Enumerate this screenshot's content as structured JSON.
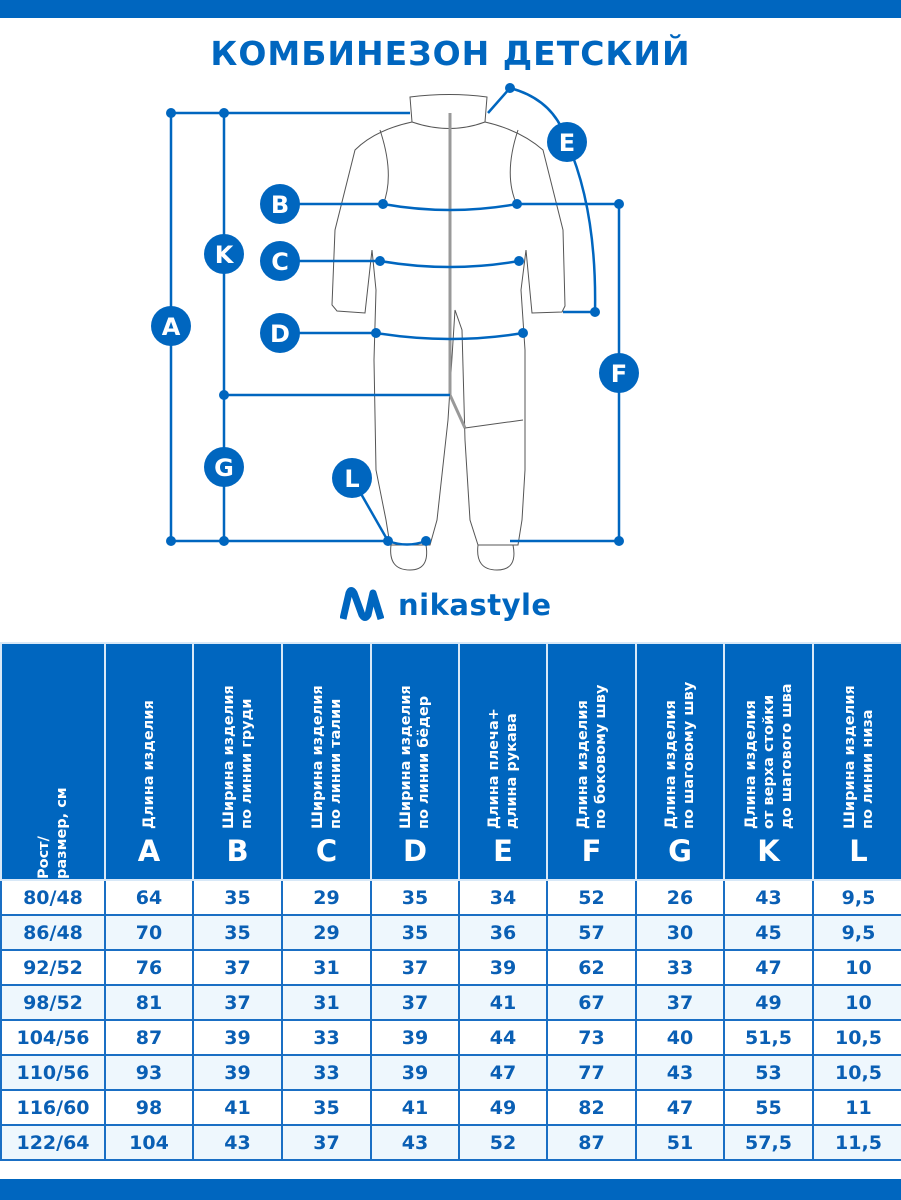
{
  "title": "КОМБИНЕЗОН ДЕТСКИЙ",
  "brand": {
    "name": "nikastyle",
    "color": "#0066bf"
  },
  "diagram": {
    "markers": [
      "A",
      "K",
      "G",
      "B",
      "C",
      "D",
      "E",
      "F",
      "L"
    ]
  },
  "table": {
    "columns": [
      {
        "label": "Рост/\nразмер, см",
        "letter": ""
      },
      {
        "label": "Длина изделия",
        "letter": "A"
      },
      {
        "label": "Ширина изделия\nпо линии груди",
        "letter": "B"
      },
      {
        "label": "Ширина изделия\nпо линии талии",
        "letter": "C"
      },
      {
        "label": "Ширина изделия\nпо линии бёдер",
        "letter": "D"
      },
      {
        "label": "Длина плеча+\nдлина рукава",
        "letter": "E"
      },
      {
        "label": "Длина изделия\nпо боковому шву",
        "letter": "F"
      },
      {
        "label": "Длина изделия\nпо шаговому шву",
        "letter": "G"
      },
      {
        "label": "Длина изделия\nот верха стойки\nдо шагового шва",
        "letter": "K"
      },
      {
        "label": "Ширина изделия\nпо линии низа",
        "letter": "L"
      }
    ],
    "rows": [
      [
        "80/48",
        "64",
        "35",
        "29",
        "35",
        "34",
        "52",
        "26",
        "43",
        "9,5"
      ],
      [
        "86/48",
        "70",
        "35",
        "29",
        "35",
        "36",
        "57",
        "30",
        "45",
        "9,5"
      ],
      [
        "92/52",
        "76",
        "37",
        "31",
        "37",
        "39",
        "62",
        "33",
        "47",
        "10"
      ],
      [
        "98/52",
        "81",
        "37",
        "31",
        "37",
        "41",
        "67",
        "37",
        "49",
        "10"
      ],
      [
        "104/56",
        "87",
        "39",
        "33",
        "39",
        "44",
        "73",
        "40",
        "51,5",
        "10,5"
      ],
      [
        "110/56",
        "93",
        "39",
        "33",
        "39",
        "47",
        "77",
        "43",
        "53",
        "10,5"
      ],
      [
        "116/60",
        "98",
        "41",
        "35",
        "41",
        "49",
        "82",
        "47",
        "55",
        "11"
      ],
      [
        "122/64",
        "104",
        "43",
        "37",
        "43",
        "52",
        "87",
        "51",
        "57,5",
        "11,5"
      ]
    ]
  }
}
